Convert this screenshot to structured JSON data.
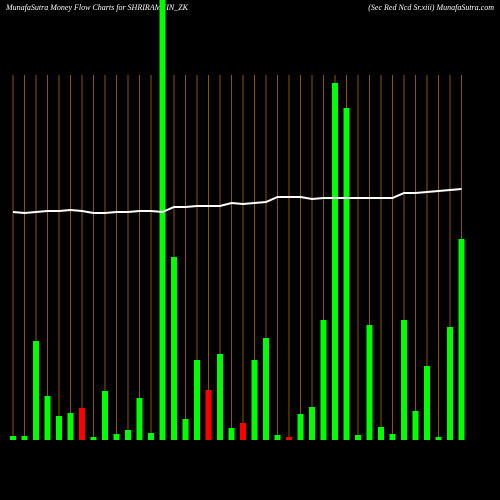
{
  "chart_data": {
    "type": "bar",
    "title": "MunafaSutra  Money Flow  Charts for SHRIRAMFIN_ZK",
    "subtitle": "(Sec Red Ncd Sr.xiii) MunafaSutra.com",
    "ylim": [
      0,
      440
    ],
    "series": [
      {
        "values": [
          4,
          4,
          99,
          44,
          24,
          27,
          32,
          3,
          49,
          6,
          10,
          42,
          7,
          440,
          183,
          21,
          80,
          50,
          86,
          12,
          17,
          80,
          102,
          5,
          3,
          26,
          33,
          120,
          357,
          332,
          5,
          115,
          13,
          6,
          120,
          29,
          74,
          3,
          113,
          201
        ],
        "colors": [
          "#00ff00",
          "#00ff00",
          "#00ff00",
          "#00ff00",
          "#00ff00",
          "#00ff00",
          "#ff0000",
          "#00ff00",
          "#00ff00",
          "#00ff00",
          "#00ff00",
          "#00ff00",
          "#00ff00",
          "#00ff00",
          "#00ff00",
          "#00ff00",
          "#00ff00",
          "#ff0000",
          "#00ff00",
          "#00ff00",
          "#ff0000",
          "#00ff00",
          "#00ff00",
          "#00ff00",
          "#ff0000",
          "#00ff00",
          "#00ff00",
          "#00ff00",
          "#00ff00",
          "#00ff00",
          "#00ff00",
          "#00ff00",
          "#00ff00",
          "#00ff00",
          "#00ff00",
          "#00ff00",
          "#00ff00",
          "#00ff00",
          "#00ff00",
          "#00ff00"
        ]
      },
      {
        "type": "line",
        "color": "#ffffff",
        "values": [
          228,
          227,
          228,
          229,
          229,
          230,
          229,
          227,
          227,
          228,
          228,
          229,
          229,
          228,
          233,
          233,
          234,
          234,
          234,
          237,
          236,
          237,
          238,
          243,
          243,
          243,
          241,
          242,
          242,
          242,
          242,
          242,
          242,
          242,
          247,
          247,
          248,
          249,
          250,
          251
        ]
      }
    ],
    "grid_color": "#b36b00"
  }
}
